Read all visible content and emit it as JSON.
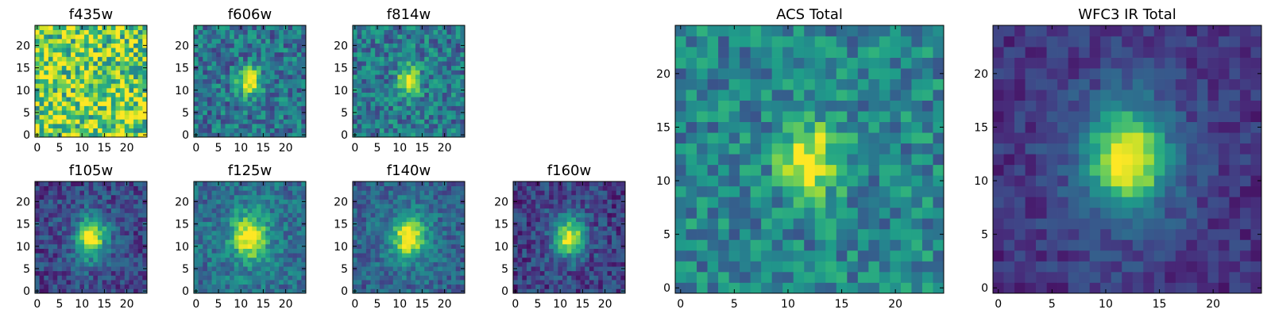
{
  "figure": {
    "background": "#ffffff",
    "colormap": "viridis"
  },
  "chart_data": [
    {
      "type": "heatmap",
      "title": "f435w",
      "grid_size": 25,
      "x_ticks": [
        0,
        5,
        10,
        15,
        20
      ],
      "y_ticks": [
        0,
        5,
        10,
        15,
        20
      ],
      "xlim": [
        0,
        24
      ],
      "ylim": [
        0,
        24
      ],
      "source": {
        "peak": 0.05,
        "sigma_x": 2.0,
        "sigma_y": 2.5,
        "noise": 0.35,
        "base": 0.78,
        "halo": 0
      }
    },
    {
      "type": "heatmap",
      "title": "f606w",
      "grid_size": 25,
      "x_ticks": [
        0,
        5,
        10,
        15,
        20
      ],
      "y_ticks": [
        0,
        5,
        10,
        15,
        20
      ],
      "xlim": [
        0,
        24
      ],
      "ylim": [
        0,
        24
      ],
      "source": {
        "peak": 0.62,
        "sigma_x": 1.8,
        "sigma_y": 2.2,
        "noise": 0.22,
        "base": 0.38,
        "halo": 0
      }
    },
    {
      "type": "heatmap",
      "title": "f814w",
      "grid_size": 25,
      "x_ticks": [
        0,
        5,
        10,
        15,
        20
      ],
      "y_ticks": [
        0,
        5,
        10,
        15,
        20
      ],
      "xlim": [
        0,
        24
      ],
      "ylim": [
        0,
        24
      ],
      "source": {
        "peak": 0.6,
        "sigma_x": 1.8,
        "sigma_y": 2.3,
        "noise": 0.22,
        "base": 0.4,
        "halo": 0
      }
    },
    {
      "type": "heatmap",
      "title": "f105w",
      "grid_size": 25,
      "x_ticks": [
        0,
        5,
        10,
        15,
        20
      ],
      "y_ticks": [
        0,
        5,
        10,
        15,
        20
      ],
      "xlim": [
        0,
        24
      ],
      "ylim": [
        0,
        24
      ],
      "source": {
        "peak": 0.72,
        "sigma_x": 2.2,
        "sigma_y": 3.0,
        "noise": 0.16,
        "base": 0.2,
        "halo": 0.12
      }
    },
    {
      "type": "heatmap",
      "title": "f125w",
      "grid_size": 25,
      "x_ticks": [
        0,
        5,
        10,
        15,
        20
      ],
      "y_ticks": [
        0,
        5,
        10,
        15,
        20
      ],
      "xlim": [
        0,
        24
      ],
      "ylim": [
        0,
        24
      ],
      "source": {
        "peak": 0.6,
        "sigma_x": 2.3,
        "sigma_y": 3.0,
        "noise": 0.16,
        "base": 0.35,
        "halo": 0.15
      }
    },
    {
      "type": "heatmap",
      "title": "f140w",
      "grid_size": 25,
      "x_ticks": [
        0,
        5,
        10,
        15,
        20
      ],
      "y_ticks": [
        0,
        5,
        10,
        15,
        20
      ],
      "xlim": [
        0,
        24
      ],
      "ylim": [
        0,
        24
      ],
      "source": {
        "peak": 0.62,
        "sigma_x": 2.3,
        "sigma_y": 2.9,
        "noise": 0.15,
        "base": 0.3,
        "halo": 0.15
      }
    },
    {
      "type": "heatmap",
      "title": "f160w",
      "grid_size": 25,
      "x_ticks": [
        0,
        5,
        10,
        15,
        20
      ],
      "y_ticks": [
        0,
        5,
        10,
        15,
        20
      ],
      "xlim": [
        0,
        24
      ],
      "ylim": [
        0,
        24
      ],
      "source": {
        "peak": 0.72,
        "sigma_x": 2.1,
        "sigma_y": 2.7,
        "noise": 0.16,
        "base": 0.18,
        "halo": 0.12
      }
    },
    {
      "type": "heatmap",
      "title": "ACS Total",
      "grid_size": 25,
      "x_ticks": [
        0,
        5,
        10,
        15,
        20
      ],
      "y_ticks": [
        0,
        5,
        10,
        15,
        20
      ],
      "xlim": [
        0,
        24
      ],
      "ylim": [
        0,
        24
      ],
      "source": {
        "peak": 0.55,
        "sigma_x": 1.9,
        "sigma_y": 2.4,
        "noise": 0.2,
        "base": 0.45,
        "halo": 0
      }
    },
    {
      "type": "heatmap",
      "title": "WFC3 IR Total",
      "grid_size": 25,
      "x_ticks": [
        0,
        5,
        10,
        15,
        20
      ],
      "y_ticks": [
        0,
        5,
        10,
        15,
        20
      ],
      "xlim": [
        0,
        24
      ],
      "ylim": [
        0,
        24
      ],
      "source": {
        "peak": 0.78,
        "sigma_x": 2.4,
        "sigma_y": 3.0,
        "noise": 0.1,
        "base": 0.14,
        "halo": 0.16
      }
    }
  ]
}
